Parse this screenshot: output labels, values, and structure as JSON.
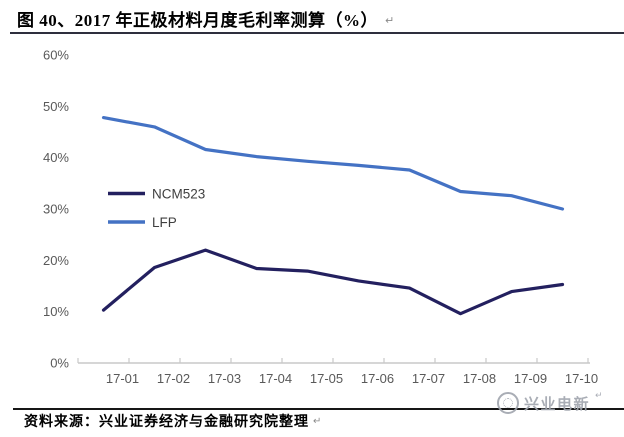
{
  "page": {
    "title": "图 40、2017 年正极材料月度毛利率测算（%）",
    "return_mark": "↵",
    "source": "资料来源：兴业证券经济与金融研究院整理",
    "watermark_text": "兴业电新"
  },
  "chart_data": {
    "type": "line",
    "title": "2017 年正极材料月度毛利率测算（%）",
    "categories": [
      "17-01",
      "17-02",
      "17-03",
      "17-04",
      "17-05",
      "17-06",
      "17-07",
      "17-08",
      "17-09",
      "17-10"
    ],
    "series": [
      {
        "name": "NCM523",
        "color": "#23205F",
        "values": [
          10.3,
          18.6,
          22.0,
          18.4,
          17.9,
          16.0,
          14.6,
          9.6,
          13.9,
          15.3
        ]
      },
      {
        "name": "LFP",
        "color": "#4472C4",
        "values": [
          47.8,
          46.0,
          41.6,
          40.2,
          39.3,
          38.5,
          37.6,
          33.4,
          32.6,
          30.0
        ]
      }
    ],
    "xlabel": "",
    "ylabel": "",
    "ylim": [
      0,
      60
    ],
    "y_ticks": [
      {
        "value": 0,
        "label": "0%"
      },
      {
        "value": 10,
        "label": "10%"
      },
      {
        "value": 20,
        "label": "20%"
      },
      {
        "value": 30,
        "label": "30%"
      },
      {
        "value": 40,
        "label": "40%"
      },
      {
        "value": 50,
        "label": "50%"
      },
      {
        "value": 60,
        "label": "60%"
      }
    ],
    "grid": false,
    "legend_position": "inside-left"
  },
  "colors": {
    "axis_text": "#595959",
    "axis_line": "#C9C9C9",
    "title_rule": "#2E2F3D",
    "bottom_rule": "#161616",
    "watermark": "#A0A5AE"
  }
}
